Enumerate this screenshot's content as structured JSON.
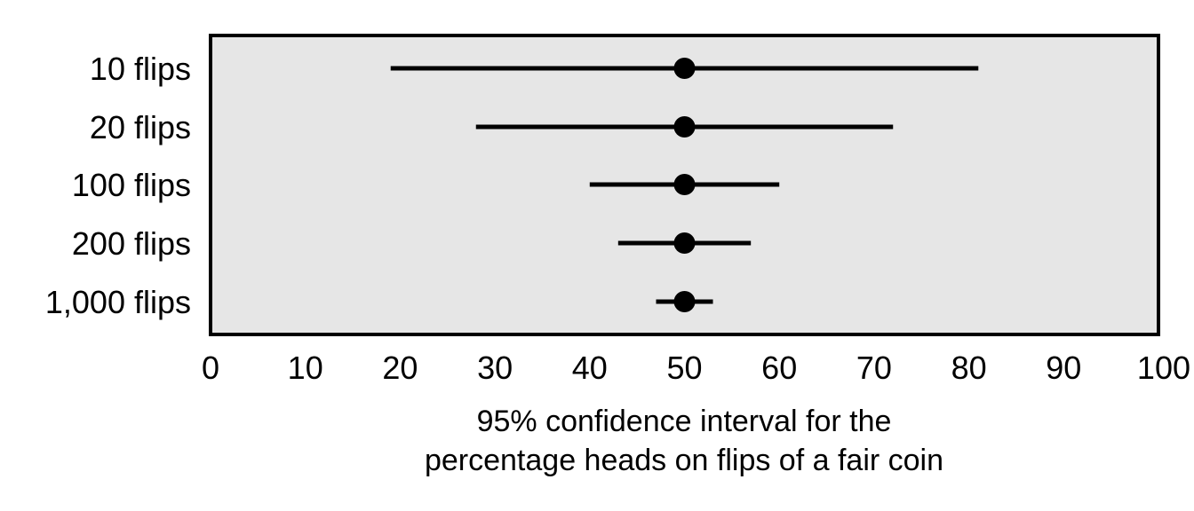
{
  "chart_data": {
    "type": "scatter",
    "subtype": "interval-plot",
    "categories": [
      "10 flips",
      "20 flips",
      "100 flips",
      "200 flips",
      "1,000 flips"
    ],
    "intervals": [
      {
        "category": "10 flips",
        "center": 50,
        "low": 19,
        "high": 81
      },
      {
        "category": "20 flips",
        "center": 50,
        "low": 28,
        "high": 72
      },
      {
        "category": "100 flips",
        "center": 50,
        "low": 40,
        "high": 60
      },
      {
        "category": "200 flips",
        "center": 50,
        "low": 43,
        "high": 57
      },
      {
        "category": "1,000 flips",
        "center": 50,
        "low": 47,
        "high": 53
      }
    ],
    "x_ticks": [
      0,
      10,
      20,
      30,
      40,
      50,
      60,
      70,
      80,
      90,
      100
    ],
    "xlim": [
      0,
      100
    ],
    "xlabel_line1": "95% confidence interval for the",
    "xlabel_line2": "percentage heads on flips of a fair coin",
    "ylabel": "",
    "title": "",
    "grid": false,
    "colors": {
      "plot_background": "#e6e6e6",
      "marks": "#000000"
    }
  }
}
